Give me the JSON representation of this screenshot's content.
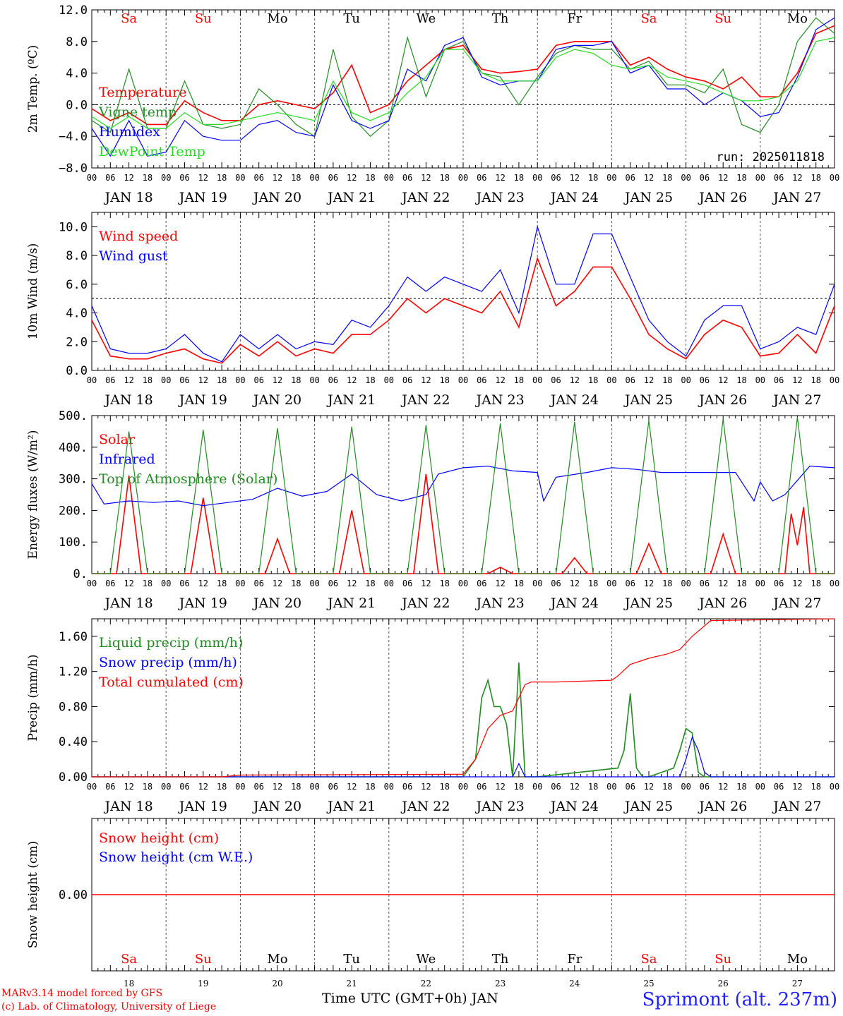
{
  "chart_data": [
    {
      "type": "line",
      "ylabel": "2m Temp. (ºC)",
      "ylim": [
        -8,
        12
      ],
      "yticks": [
        "−8.0",
        "−4.0",
        "0.0",
        "4.0",
        "8.0",
        "12.0"
      ],
      "ref_line": 0,
      "annotation": "run: 2025011818",
      "series": [
        {
          "name": "Temperature",
          "color": "#ff0000",
          "x": [
            0,
            6,
            12,
            18,
            24,
            30,
            36,
            42,
            48,
            54,
            60,
            66,
            72,
            78,
            84,
            90,
            96,
            102,
            108,
            114,
            120,
            126,
            132,
            138,
            144,
            150,
            156,
            162,
            168,
            174,
            180,
            186,
            192,
            198,
            204,
            210,
            216,
            222,
            228,
            234,
            240
          ],
          "y": [
            -0.5,
            -2.0,
            -1.0,
            -2.5,
            -2.5,
            0.5,
            -1.0,
            -2.0,
            -2.0,
            0.0,
            0.5,
            0.0,
            -0.5,
            1.5,
            5.0,
            -1.0,
            0.0,
            3.0,
            5.0,
            7.0,
            7.5,
            4.5,
            4.0,
            4.2,
            4.5,
            7.5,
            8.0,
            8.0,
            8.0,
            5.0,
            6.0,
            4.5,
            3.5,
            3.0,
            2.0,
            3.5,
            1.0,
            1.0,
            4.0,
            9.0,
            10.0
          ]
        },
        {
          "name": "Vigne temp",
          "color": "#228b22",
          "x": [
            0,
            6,
            12,
            18,
            24,
            30,
            36,
            42,
            48,
            54,
            60,
            66,
            72,
            78,
            84,
            90,
            96,
            102,
            108,
            114,
            120,
            126,
            132,
            138,
            144,
            150,
            156,
            162,
            168,
            174,
            180,
            186,
            192,
            198,
            204,
            210,
            216,
            222,
            228,
            234,
            240
          ],
          "y": [
            -2.0,
            -3.5,
            4.5,
            -3.0,
            -3.0,
            3.0,
            -2.5,
            -3.0,
            -2.5,
            2.0,
            0.0,
            -2.5,
            -4.0,
            7.0,
            -1.5,
            -4.0,
            -2.0,
            8.5,
            1.0,
            7.0,
            8.0,
            4.0,
            3.5,
            0.0,
            3.5,
            6.5,
            7.5,
            7.0,
            7.0,
            4.5,
            5.5,
            2.5,
            2.5,
            1.5,
            4.5,
            -2.5,
            -3.5,
            0.0,
            8.0,
            11.0,
            9.0
          ]
        },
        {
          "name": "Humidex",
          "color": "#0000ff",
          "x": [
            0,
            6,
            12,
            18,
            24,
            30,
            36,
            42,
            48,
            54,
            60,
            66,
            72,
            78,
            84,
            90,
            96,
            102,
            108,
            114,
            120,
            126,
            132,
            138,
            144,
            150,
            156,
            162,
            168,
            174,
            180,
            186,
            192,
            198,
            204,
            210,
            216,
            222,
            228,
            234,
            240
          ],
          "y": [
            -3.0,
            -6.5,
            -2.0,
            -6.5,
            -6.0,
            -2.0,
            -4.0,
            -4.5,
            -4.5,
            -2.5,
            -2.0,
            -3.5,
            -4.0,
            2.5,
            -2.0,
            -3.0,
            -2.0,
            4.5,
            3.0,
            7.5,
            8.5,
            3.5,
            2.5,
            3.0,
            3.0,
            7.0,
            7.5,
            7.5,
            8.0,
            4.0,
            5.0,
            2.0,
            2.0,
            0.0,
            1.5,
            0.5,
            -1.5,
            -1.0,
            3.5,
            9.5,
            11.0
          ]
        },
        {
          "name": "DewPoint Temp",
          "color": "#22dd22",
          "x": [
            0,
            6,
            12,
            18,
            24,
            30,
            36,
            42,
            48,
            54,
            60,
            66,
            72,
            78,
            84,
            90,
            96,
            102,
            108,
            114,
            120,
            126,
            132,
            138,
            144,
            150,
            156,
            162,
            168,
            174,
            180,
            186,
            192,
            198,
            204,
            210,
            216,
            222,
            228,
            234,
            240
          ],
          "y": [
            -1.5,
            -3.0,
            -1.5,
            -3.0,
            -3.0,
            -1.0,
            -2.5,
            -2.5,
            -2.0,
            -1.5,
            -1.0,
            -1.5,
            -2.0,
            3.0,
            -1.0,
            -2.0,
            -1.0,
            1.5,
            3.5,
            7.0,
            7.0,
            4.0,
            3.0,
            3.0,
            3.0,
            6.0,
            7.0,
            6.5,
            5.0,
            4.5,
            5.0,
            3.5,
            3.0,
            2.5,
            1.5,
            0.5,
            0.5,
            1.0,
            3.0,
            8.0,
            8.5
          ]
        }
      ]
    },
    {
      "type": "line",
      "ylabel": "10m Wind (m/s)",
      "ylim": [
        0,
        11
      ],
      "yticks": [
        "0.0",
        "2.0",
        "4.0",
        "6.0",
        "8.0",
        "10.0"
      ],
      "ref_line": 5,
      "series": [
        {
          "name": "Wind speed",
          "color": "#ff0000",
          "x": [
            0,
            6,
            12,
            18,
            24,
            30,
            36,
            42,
            48,
            54,
            60,
            66,
            72,
            78,
            84,
            90,
            96,
            102,
            108,
            114,
            120,
            126,
            132,
            138,
            144,
            150,
            156,
            162,
            168,
            174,
            180,
            186,
            192,
            198,
            204,
            210,
            216,
            222,
            228,
            234,
            240
          ],
          "y": [
            3.5,
            1.0,
            0.8,
            0.8,
            1.2,
            1.5,
            0.8,
            0.5,
            1.8,
            1.0,
            2.0,
            1.0,
            1.5,
            1.2,
            2.5,
            2.5,
            3.5,
            5.0,
            4.0,
            5.0,
            4.5,
            4.0,
            5.5,
            3.0,
            7.8,
            4.5,
            5.5,
            7.2,
            7.2,
            5.0,
            2.5,
            1.5,
            0.8,
            2.5,
            3.5,
            3.0,
            1.0,
            1.2,
            2.5,
            1.2,
            4.5
          ]
        },
        {
          "name": "Wind gust",
          "color": "#0000ff",
          "x": [
            0,
            6,
            12,
            18,
            24,
            30,
            36,
            42,
            48,
            54,
            60,
            66,
            72,
            78,
            84,
            90,
            96,
            102,
            108,
            114,
            120,
            126,
            132,
            138,
            144,
            150,
            156,
            162,
            168,
            174,
            180,
            186,
            192,
            198,
            204,
            210,
            216,
            222,
            228,
            234,
            240
          ],
          "y": [
            4.5,
            1.5,
            1.2,
            1.2,
            1.5,
            2.5,
            1.2,
            0.6,
            2.5,
            1.5,
            2.5,
            1.5,
            2.0,
            1.8,
            3.5,
            3.0,
            4.5,
            6.5,
            5.5,
            6.5,
            6.0,
            5.5,
            7.0,
            4.0,
            10.0,
            6.0,
            6.0,
            9.5,
            9.5,
            6.5,
            3.5,
            2.0,
            1.0,
            3.5,
            4.5,
            4.5,
            1.5,
            2.0,
            3.0,
            2.5,
            6.0
          ]
        }
      ]
    },
    {
      "type": "line",
      "ylabel": "Energy fluxes (W/m²)",
      "ylim": [
        0,
        500
      ],
      "yticks": [
        "0.",
        "100.",
        "200.",
        "300.",
        "400.",
        "500."
      ],
      "series": [
        {
          "name": "Solar",
          "color": "#ff0000",
          "x": [
            0,
            8,
            12,
            16,
            24,
            32,
            36,
            40,
            48,
            56,
            60,
            64,
            72,
            80,
            84,
            88,
            96,
            104,
            108,
            112,
            120,
            128,
            132,
            136,
            144,
            152,
            156,
            160,
            168,
            176,
            180,
            184,
            192,
            200,
            204,
            208,
            216,
            224,
            226,
            228,
            230,
            232,
            240
          ],
          "y": [
            0,
            0,
            310,
            0,
            0,
            0,
            240,
            0,
            0,
            0,
            110,
            0,
            0,
            0,
            200,
            0,
            0,
            0,
            315,
            0,
            0,
            0,
            20,
            0,
            0,
            0,
            50,
            0,
            0,
            0,
            95,
            0,
            0,
            0,
            125,
            0,
            0,
            0,
            190,
            90,
            210,
            0,
            0
          ]
        },
        {
          "name": "Infrared",
          "color": "#0000ff",
          "x": [
            0,
            4,
            12,
            20,
            28,
            36,
            44,
            52,
            60,
            68,
            76,
            84,
            92,
            100,
            108,
            112,
            120,
            128,
            136,
            144,
            146,
            150,
            160,
            168,
            176,
            184,
            192,
            200,
            208,
            214,
            216,
            220,
            224,
            232,
            240
          ],
          "y": [
            285,
            220,
            230,
            225,
            230,
            215,
            225,
            235,
            270,
            245,
            260,
            315,
            250,
            230,
            250,
            315,
            335,
            340,
            325,
            320,
            230,
            305,
            320,
            335,
            330,
            320,
            320,
            320,
            320,
            230,
            290,
            230,
            250,
            340,
            335
          ]
        },
        {
          "name": "Top of Atmosphere (Solar)",
          "color": "#228b22",
          "x": [
            0,
            6,
            12,
            18,
            24,
            30,
            36,
            42,
            48,
            54,
            60,
            66,
            72,
            78,
            84,
            90,
            96,
            102,
            108,
            114,
            120,
            126,
            132,
            138,
            144,
            150,
            156,
            162,
            168,
            174,
            180,
            186,
            192,
            198,
            204,
            210,
            216,
            222,
            228,
            234,
            240
          ],
          "y": [
            0,
            0,
            450,
            0,
            0,
            0,
            455,
            0,
            0,
            0,
            460,
            0,
            0,
            0,
            465,
            0,
            0,
            0,
            470,
            0,
            0,
            0,
            475,
            0,
            0,
            0,
            480,
            0,
            0,
            0,
            485,
            0,
            0,
            0,
            490,
            0,
            0,
            0,
            495,
            0,
            0
          ]
        }
      ]
    },
    {
      "type": "line",
      "ylabel": "Precip (mm/h)",
      "ylim": [
        0,
        1.8
      ],
      "yticks": [
        "0.00",
        "0.40",
        "0.80",
        "1.20",
        "1.60"
      ],
      "series": [
        {
          "name": "Liquid precip (mm/h)",
          "color": "#228b22",
          "x": [
            0,
            120,
            124,
            126,
            128,
            130,
            132,
            134,
            136,
            138,
            140,
            142,
            144,
            170,
            172,
            174,
            176,
            178,
            180,
            188,
            190,
            192,
            194,
            196,
            198,
            240
          ],
          "y": [
            0,
            0,
            0.2,
            0.9,
            1.1,
            0.8,
            0.8,
            0.6,
            0.0,
            1.3,
            0.0,
            0.0,
            0.0,
            0.1,
            0.3,
            0.95,
            0.1,
            0.0,
            0.0,
            0.1,
            0.3,
            0.55,
            0.5,
            0.05,
            0.0,
            0
          ]
        },
        {
          "name": "Snow precip (mm/h)",
          "color": "#0000ff",
          "x": [
            0,
            136,
            138,
            140,
            142,
            190,
            192,
            194,
            196,
            198,
            200,
            240
          ],
          "y": [
            0,
            0,
            0.15,
            0.0,
            0.0,
            0.0,
            0.2,
            0.45,
            0.3,
            0.05,
            0.0,
            0
          ]
        },
        {
          "name": "Total cumulated (cm)",
          "color": "#ff0000",
          "x": [
            0,
            42,
            48,
            120,
            124,
            128,
            132,
            136,
            140,
            142,
            144,
            150,
            168,
            170,
            174,
            180,
            186,
            190,
            194,
            200,
            240
          ],
          "y": [
            0,
            0,
            0.02,
            0.03,
            0.2,
            0.55,
            0.7,
            0.75,
            1.05,
            1.08,
            1.08,
            1.08,
            1.1,
            1.15,
            1.28,
            1.35,
            1.4,
            1.45,
            1.6,
            1.78,
            1.8
          ]
        }
      ]
    },
    {
      "type": "line",
      "ylabel": "Snow height (cm)",
      "ylim": [
        -1,
        1
      ],
      "yticks": [
        "0.00"
      ],
      "series": [
        {
          "name": "Snow height (cm)",
          "color": "#ff0000",
          "x": [
            0,
            240
          ],
          "y": [
            0,
            0
          ]
        },
        {
          "name": "Snow height (cm W.E.)",
          "color": "#0000ff",
          "x": [],
          "y": []
        }
      ]
    }
  ],
  "days": [
    {
      "name": "Sa",
      "weekend": true,
      "date": "JAN 18",
      "num": "18"
    },
    {
      "name": "Su",
      "weekend": true,
      "date": "JAN 19",
      "num": "19"
    },
    {
      "name": "Mo",
      "weekend": false,
      "date": "JAN 20",
      "num": "20"
    },
    {
      "name": "Tu",
      "weekend": false,
      "date": "JAN 21",
      "num": "21"
    },
    {
      "name": "We",
      "weekend": false,
      "date": "JAN 22",
      "num": "22"
    },
    {
      "name": "Th",
      "weekend": false,
      "date": "JAN 23",
      "num": "23"
    },
    {
      "name": "Fr",
      "weekend": false,
      "date": "JAN 24",
      "num": "24"
    },
    {
      "name": "Sa",
      "weekend": true,
      "date": "JAN 25",
      "num": "25"
    },
    {
      "name": "Su",
      "weekend": true,
      "date": "JAN 26",
      "num": "26"
    },
    {
      "name": "Mo",
      "weekend": false,
      "date": "JAN 27",
      "num": "27"
    }
  ],
  "hour_labels": [
    "00",
    "06",
    "12",
    "18"
  ],
  "final_hour_label": "00",
  "footer": {
    "xlabel": "Time UTC (GMT+0h) JAN",
    "credit_line1": "MARv3.14 model forced by GFS",
    "credit_line2": "(c) Lab. of Climatology, University of Liege",
    "location": "Sprimont (alt. 237m)"
  }
}
